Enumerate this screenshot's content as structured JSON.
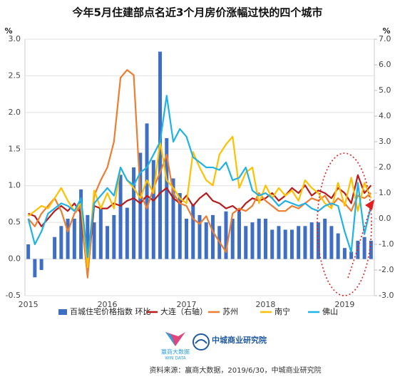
{
  "chart_data": {
    "type": "combo",
    "title": "今年5月住建部点名近3个月房价涨幅过快的四个城市",
    "y_label": "%",
    "y2_label": "%",
    "categories": [
      "2015",
      null,
      null,
      null,
      null,
      null,
      null,
      null,
      null,
      null,
      null,
      null,
      "2016",
      null,
      null,
      null,
      null,
      null,
      null,
      null,
      null,
      null,
      null,
      null,
      "2017",
      null,
      null,
      null,
      null,
      null,
      null,
      null,
      null,
      null,
      null,
      null,
      "2018",
      null,
      null,
      null,
      null,
      null,
      null,
      null,
      null,
      null,
      null,
      null,
      "2019",
      null,
      null,
      null,
      null
    ],
    "ylim": [
      -0.5,
      3.0
    ],
    "yticks": [
      -0.5,
      {
        "value": 0,
        "label": "0.0"
      },
      0.5,
      {
        "value": 1,
        "label": "1.0"
      },
      1.5,
      {
        "value": 2,
        "label": "2.0"
      },
      2.5,
      {
        "value": 3,
        "label": "3.0"
      }
    ],
    "y2lim": [
      -3.0,
      7.0
    ],
    "y2ticks": [
      {
        "value": -3,
        "label": "-3.0"
      },
      {
        "value": -2,
        "label": "-2.0"
      },
      {
        "value": -1,
        "label": "-1.0"
      },
      {
        "value": 0,
        "label": "0.0"
      },
      {
        "value": 1,
        "label": "1.0"
      },
      {
        "value": 2,
        "label": "2.0"
      },
      {
        "value": 3,
        "label": "3.0"
      },
      {
        "value": 4,
        "label": "4.0"
      },
      {
        "value": 5,
        "label": "5.0"
      },
      {
        "value": 6,
        "label": "6.0"
      },
      {
        "value": 7,
        "label": "7.0"
      }
    ],
    "grid": true,
    "series": [
      {
        "name": "百城住宅价格指数 环比",
        "type": "bar",
        "color": "#3f6fc4",
        "values": [
          0.2,
          -0.25,
          -0.15,
          0.0,
          0.3,
          0.45,
          0.55,
          0.55,
          0.95,
          0.6,
          0.5,
          0.7,
          0.45,
          0.6,
          1.15,
          0.7,
          1.25,
          1.45,
          1.85,
          1.35,
          2.83,
          1.65,
          1.1,
          0.9,
          0.55,
          0.75,
          0.6,
          0.5,
          0.6,
          0.45,
          0.65,
          0.55,
          0.65,
          0.45,
          0.5,
          0.55,
          0.55,
          0.4,
          0.45,
          0.4,
          0.4,
          0.45,
          0.45,
          0.5,
          0.5,
          0.55,
          0.45,
          0.35,
          0.15,
          0.1,
          0.25,
          0.3,
          0.25
        ]
      },
      {
        "name": "大连（右轴）",
        "type": "line",
        "axis": "y2",
        "color": "#b71c1c",
        "values": [
          0.2,
          0.1,
          -0.3,
          0.0,
          0.3,
          0.5,
          0.3,
          0.6,
          0.2,
          -2.2,
          0.5,
          0.4,
          0.4,
          0.6,
          0.5,
          0.7,
          0.8,
          0.6,
          0.9,
          0.7,
          1.0,
          1.2,
          0.8,
          0.6,
          0.9,
          0.5,
          0.8,
          1.0,
          0.7,
          0.6,
          0.4,
          0.5,
          0.3,
          0.6,
          0.8,
          0.7,
          0.8,
          1.0,
          0.7,
          0.9,
          1.2,
          1.0,
          1.3,
          0.9,
          1.1,
          1.0,
          0.8,
          1.2,
          1.0,
          0.6,
          1.7,
          1.0,
          1.3
        ]
      },
      {
        "name": "苏州",
        "type": "line",
        "axis": "y2",
        "color": "#ed7d31",
        "values": [
          0.0,
          -0.3,
          0.2,
          0.5,
          0.8,
          0.3,
          -0.5,
          0.2,
          0.5,
          -2.3,
          0.9,
          1.5,
          2.0,
          3.0,
          5.5,
          5.8,
          5.6,
          1.0,
          0.4,
          1.2,
          1.8,
          2.5,
          1.0,
          0.6,
          0.5,
          0.0,
          -0.2,
          0.1,
          -0.5,
          -0.9,
          -1.3,
          0.2,
          0.4,
          0.3,
          0.5,
          1.0,
          0.7,
          0.5,
          0.3,
          0.3,
          0.5,
          0.4,
          0.6,
          0.8,
          0.7,
          0.9,
          0.5,
          0.8,
          0.6,
          0.3,
          0.9,
          0.8,
          1.0
        ]
      },
      {
        "name": "南宁",
        "type": "line",
        "axis": "y2",
        "color": "#ffc000",
        "values": [
          0.1,
          0.3,
          0.5,
          0.4,
          0.8,
          1.2,
          0.7,
          0.3,
          0.6,
          -1.9,
          1.1,
          0.4,
          1.0,
          0.4,
          2.0,
          1.5,
          1.2,
          0.8,
          1.5,
          1.0,
          3.0,
          1.5,
          1.2,
          0.8,
          0.6,
          2.6,
          2.0,
          1.5,
          1.3,
          2.5,
          2.9,
          3.2,
          1.2,
          1.8,
          2.0,
          0.6,
          1.3,
          0.8,
          1.2,
          0.9,
          1.1,
          0.7,
          1.5,
          1.2,
          1.0,
          0.6,
          0.4,
          1.4,
          0.5,
          1.6,
          0.3,
          1.4,
          0.8
        ]
      },
      {
        "name": "佛山",
        "type": "line",
        "axis": "y2",
        "color": "#1fb2e6",
        "values": [
          0.0,
          -1.0,
          -0.5,
          0.2,
          0.4,
          0.6,
          0.5,
          0.3,
          0.8,
          -1.5,
          0.6,
          0.9,
          1.2,
          0.9,
          2.0,
          1.5,
          1.3,
          1.8,
          2.0,
          2.5,
          3.0,
          4.8,
          3.0,
          3.5,
          3.2,
          2.4,
          2.2,
          2.0,
          2.0,
          1.9,
          2.2,
          1.5,
          1.6,
          2.0,
          1.1,
          0.9,
          1.0,
          0.8,
          0.5,
          0.7,
          0.6,
          0.5,
          0.6,
          0.4,
          0.3,
          0.5,
          0.6,
          0.5,
          -0.5,
          -1.3,
          1.4,
          -0.6,
          0.5
        ]
      }
    ]
  },
  "footer": {
    "logo1": "赢商大数据",
    "logo1_en": "WIN DATA",
    "logo2": "中城商业研究院",
    "source": "资料来源：赢商大数据，2019/6/30，中城商业研究院"
  }
}
